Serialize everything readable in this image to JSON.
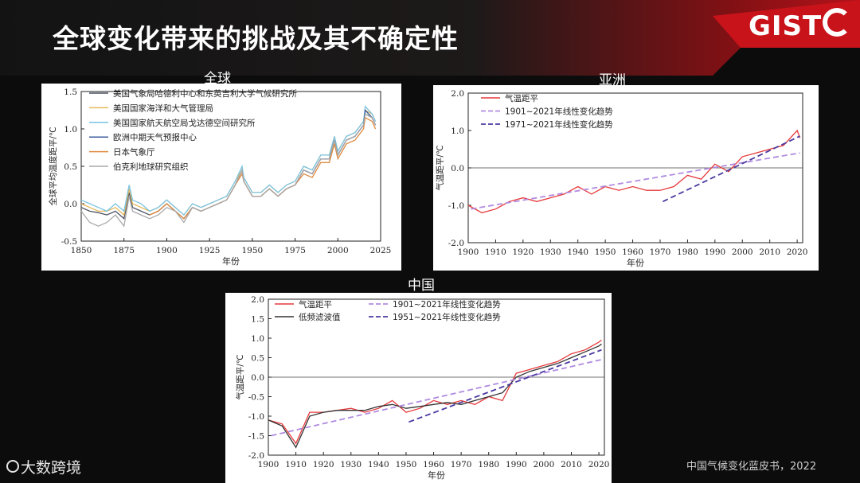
{
  "slide": {
    "title": "全球变化带来的挑战及其不确定性",
    "logo_text": "GIST",
    "watermark_text": "大数跨境",
    "source": "中国气候变化蓝皮书，2022",
    "colors": {
      "background": "#0c0c0c",
      "accent": "#c8131b"
    }
  },
  "chart_data": [
    {
      "id": "global",
      "type": "line",
      "panel_title": "全球",
      "xlabel": "年份",
      "ylabel": "全球平均温度距平/℃",
      "xlim": [
        1850,
        2025
      ],
      "ylim": [
        -0.5,
        1.5
      ],
      "xticks": [
        1850,
        1875,
        1900,
        1925,
        1950,
        1975,
        2000,
        2025
      ],
      "yticks": [
        -0.5,
        0.0,
        0.5,
        1.0,
        1.5
      ],
      "legend_position": "top-left",
      "x": [
        1850,
        1855,
        1860,
        1865,
        1870,
        1875,
        1878,
        1880,
        1885,
        1890,
        1895,
        1900,
        1905,
        1910,
        1915,
        1920,
        1925,
        1930,
        1935,
        1940,
        1944,
        1945,
        1950,
        1955,
        1960,
        1965,
        1970,
        1975,
        1980,
        1985,
        1990,
        1995,
        1998,
        2000,
        2005,
        2010,
        2015,
        2016,
        2020,
        2022
      ],
      "series": [
        {
          "name": "美国气象局哈德利中心和东英吉利大学气候研究所",
          "color": "#4d5363",
          "values": [
            -0.05,
            -0.1,
            -0.12,
            -0.15,
            -0.1,
            -0.2,
            0.15,
            -0.05,
            -0.1,
            -0.15,
            -0.1,
            0.0,
            -0.1,
            -0.2,
            -0.05,
            -0.1,
            -0.05,
            0.0,
            0.05,
            0.25,
            0.45,
            0.3,
            0.1,
            0.1,
            0.2,
            0.1,
            0.2,
            0.25,
            0.45,
            0.4,
            0.6,
            0.6,
            0.85,
            0.65,
            0.85,
            0.9,
            1.05,
            1.2,
            1.15,
            1.05
          ]
        },
        {
          "name": "美国国家海洋和大气管理局",
          "color": "#e7b75a",
          "values": [
            0.0,
            -0.05,
            -0.1,
            -0.1,
            -0.05,
            -0.15,
            0.2,
            0.0,
            -0.05,
            -0.1,
            -0.05,
            0.05,
            -0.05,
            -0.15,
            0.0,
            -0.05,
            0.0,
            0.05,
            0.1,
            0.3,
            0.45,
            0.35,
            0.15,
            0.15,
            0.25,
            0.15,
            0.25,
            0.3,
            0.5,
            0.45,
            0.65,
            0.65,
            0.9,
            0.7,
            0.9,
            0.95,
            1.1,
            1.25,
            1.2,
            1.1
          ]
        },
        {
          "name": "美国国家航天航空局戈达德空间研究所",
          "color": "#79c4e3",
          "values": [
            0.05,
            0.0,
            -0.05,
            -0.1,
            0.0,
            -0.1,
            0.25,
            0.05,
            0.0,
            -0.1,
            -0.05,
            0.05,
            -0.05,
            -0.15,
            0.0,
            -0.05,
            0.0,
            0.05,
            0.1,
            0.3,
            0.5,
            0.35,
            0.15,
            0.15,
            0.25,
            0.15,
            0.25,
            0.3,
            0.5,
            0.45,
            0.65,
            0.65,
            0.9,
            0.7,
            0.9,
            0.95,
            1.1,
            1.3,
            1.2,
            1.1
          ]
        },
        {
          "name": "欧洲中期天气预报中心",
          "color": "#3c5d9c",
          "values": [
            null,
            null,
            null,
            null,
            null,
            null,
            null,
            null,
            null,
            null,
            null,
            null,
            null,
            null,
            null,
            null,
            null,
            null,
            null,
            null,
            null,
            null,
            null,
            null,
            null,
            null,
            null,
            0.25,
            0.45,
            0.4,
            0.6,
            0.6,
            0.85,
            0.65,
            0.85,
            0.9,
            1.05,
            1.25,
            1.15,
            1.05
          ]
        },
        {
          "name": "日本气象厅",
          "color": "#e08a3e",
          "values": [
            null,
            null,
            null,
            null,
            null,
            null,
            null,
            null,
            null,
            -0.15,
            -0.1,
            0.0,
            -0.1,
            -0.2,
            -0.05,
            -0.1,
            -0.05,
            0.0,
            0.05,
            0.25,
            0.4,
            0.3,
            0.1,
            0.1,
            0.2,
            0.1,
            0.2,
            0.25,
            0.4,
            0.35,
            0.55,
            0.55,
            0.8,
            0.6,
            0.8,
            0.85,
            1.0,
            1.15,
            1.1,
            1.0
          ]
        },
        {
          "name": "伯克利地球研究组织",
          "color": "#a9a9a9",
          "values": [
            -0.1,
            -0.25,
            -0.3,
            -0.25,
            -0.15,
            -0.3,
            0.1,
            -0.1,
            -0.15,
            -0.2,
            -0.15,
            -0.05,
            -0.1,
            -0.25,
            -0.05,
            -0.1,
            -0.05,
            0.0,
            0.05,
            0.25,
            0.45,
            0.3,
            0.1,
            0.1,
            0.2,
            0.1,
            0.2,
            0.25,
            0.45,
            0.4,
            0.6,
            0.6,
            0.85,
            0.65,
            0.85,
            0.9,
            1.05,
            1.2,
            1.15,
            1.05
          ]
        }
      ]
    },
    {
      "id": "asia",
      "type": "line",
      "panel_title": "亚洲",
      "xlabel": "年份",
      "ylabel": "气温距平/℃",
      "xlim": [
        1900,
        2022
      ],
      "ylim": [
        -2.0,
        2.0
      ],
      "xticks": [
        1900,
        1910,
        1920,
        1930,
        1940,
        1950,
        1960,
        1970,
        1980,
        1990,
        2000,
        2010,
        2020
      ],
      "yticks": [
        -2.0,
        -1.0,
        0.0,
        1.0,
        2.0
      ],
      "legend_position": "top-left",
      "x": [
        1900,
        1905,
        1910,
        1915,
        1920,
        1925,
        1930,
        1935,
        1940,
        1945,
        1950,
        1955,
        1960,
        1965,
        1970,
        1975,
        1980,
        1985,
        1990,
        1995,
        2000,
        2005,
        2010,
        2015,
        2020,
        2021
      ],
      "series": [
        {
          "name": "气温距平",
          "color": "#e6393b",
          "style": "solid",
          "values": [
            -1.0,
            -1.2,
            -1.1,
            -0.9,
            -0.8,
            -0.9,
            -0.8,
            -0.7,
            -0.5,
            -0.7,
            -0.5,
            -0.6,
            -0.5,
            -0.6,
            -0.6,
            -0.5,
            -0.2,
            -0.3,
            0.1,
            -0.1,
            0.3,
            0.4,
            0.5,
            0.6,
            1.0,
            0.8
          ]
        },
        {
          "name": "1901~2021年线性变化趋势",
          "color": "#b08be0",
          "style": "dashed",
          "x": [
            1901,
            2021
          ],
          "values": [
            -1.1,
            0.4
          ]
        },
        {
          "name": "1971~2021年线性变化趋势",
          "color": "#4a3aa0",
          "style": "dashed",
          "x": [
            1971,
            2021
          ],
          "values": [
            -0.9,
            0.85
          ]
        }
      ]
    },
    {
      "id": "china",
      "type": "line",
      "panel_title": "中国",
      "xlabel": "年份",
      "ylabel": "气温距平/℃",
      "xlim": [
        1900,
        2022
      ],
      "ylim": [
        -2.0,
        2.0
      ],
      "xticks": [
        1900,
        1910,
        1920,
        1930,
        1940,
        1950,
        1960,
        1970,
        1980,
        1990,
        2000,
        2010,
        2020
      ],
      "yticks": [
        -2.0,
        -1.5,
        -1.0,
        -0.5,
        0.0,
        0.5,
        1.0,
        1.5,
        2.0
      ],
      "legend_position": "top-left",
      "x": [
        1900,
        1905,
        1910,
        1915,
        1920,
        1925,
        1930,
        1935,
        1940,
        1945,
        1950,
        1955,
        1960,
        1965,
        1970,
        1975,
        1980,
        1985,
        1990,
        1995,
        2000,
        2005,
        2010,
        2015,
        2020,
        2021
      ],
      "series": [
        {
          "name": "气温距平",
          "color": "#e6393b",
          "style": "solid",
          "values": [
            -1.1,
            -1.2,
            -1.7,
            -0.9,
            -0.9,
            -0.85,
            -0.8,
            -0.9,
            -0.8,
            -0.6,
            -0.9,
            -0.8,
            -0.6,
            -0.7,
            -0.6,
            -0.7,
            -0.5,
            -0.6,
            0.1,
            0.2,
            0.3,
            0.4,
            0.6,
            0.7,
            0.9,
            0.95
          ]
        },
        {
          "name": "低频滤波值",
          "color": "#333333",
          "style": "solid",
          "values": [
            -1.1,
            -1.25,
            -1.8,
            -1.0,
            -0.9,
            -0.85,
            -0.85,
            -0.85,
            -0.75,
            -0.7,
            -0.8,
            -0.75,
            -0.7,
            -0.65,
            -0.7,
            -0.6,
            -0.5,
            -0.4,
            0.0,
            0.15,
            0.25,
            0.35,
            0.5,
            0.65,
            0.8,
            0.85
          ]
        },
        {
          "name": "1901~2021年线性变化趋势",
          "color": "#b08be0",
          "style": "dashed",
          "x": [
            1901,
            2021
          ],
          "values": [
            -1.5,
            0.45
          ]
        },
        {
          "name": "1951~2021年线性变化趋势",
          "color": "#4a3aa0",
          "style": "dashed",
          "x": [
            1951,
            2021
          ],
          "values": [
            -1.15,
            0.7
          ]
        }
      ]
    }
  ]
}
